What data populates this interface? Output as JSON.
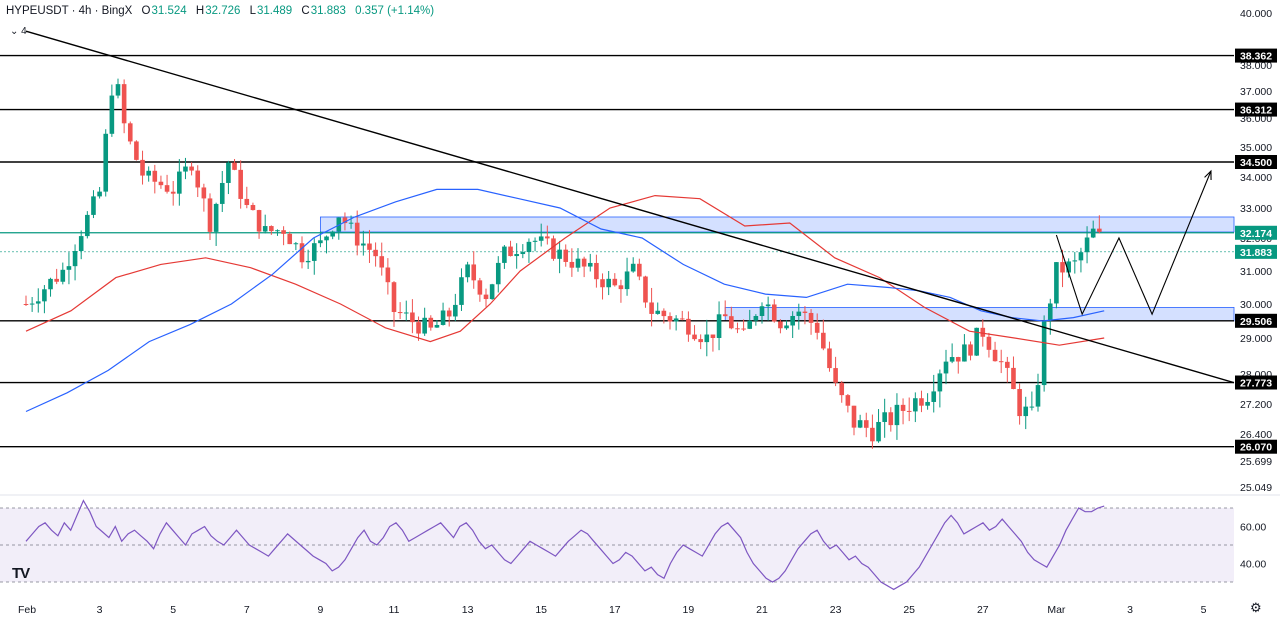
{
  "header": {
    "symbol": "HYPEUSDT · 4h · BingX",
    "open_label": "O",
    "open": "31.524",
    "high_label": "H",
    "high": "32.726",
    "low_label": "L",
    "low": "31.489",
    "close_label": "C",
    "close": "31.883",
    "change": "0.357 (+1.14%)"
  },
  "indicators_collapse": "4",
  "logo": "TV",
  "settings_icon": "gear-icon",
  "colors": {
    "up": "#089981",
    "down": "#ef5350",
    "ma_fast": "#e53935",
    "ma_slow": "#2962ff",
    "rsi": "#7e57c2",
    "level": "#000000",
    "zone": "#2962ff"
  },
  "chart_data": [
    {
      "type": "candlestick",
      "symbol": "HYPEUSDT",
      "interval": "4h",
      "exchange": "BingX",
      "price_axis_ticks": [
        "40.000",
        "38.000",
        "37.000",
        "36.000",
        "35.000",
        "34.000",
        "33.000",
        "32.000",
        "31.000",
        "30.000",
        "29.000",
        "28.000",
        "27.200",
        "26.400",
        "25.699",
        "25.049"
      ],
      "time_axis_ticks": [
        "Feb",
        "3",
        "5",
        "7",
        "9",
        "11",
        "13",
        "15",
        "17",
        "19",
        "21",
        "23",
        "25",
        "27",
        "Mar",
        "3",
        "5"
      ],
      "horizontal_levels": [
        "38.362",
        "36.312",
        "34.500",
        "32.174",
        "29.506",
        "27.773",
        "26.070"
      ],
      "last_price": "31.883",
      "ylim": [
        25.0,
        40.0
      ],
      "zones": [
        {
          "from_date": "Feb 9",
          "to_date": "Mar 5",
          "low": 32.2,
          "high": 32.7
        },
        {
          "from_date": "Feb 20",
          "to_date": "Mar 5",
          "low": 29.5,
          "high": 29.9
        }
      ],
      "trendline": {
        "from": {
          "date": "Feb 1",
          "price": 39.3
        },
        "to": {
          "date": "Mar 5",
          "price": 27.77
        }
      },
      "projection": [
        {
          "date": "Mar 1",
          "price": 32.1
        },
        {
          "date": "Mar 1.7",
          "price": 29.7
        },
        {
          "date": "Mar 2.7",
          "price": 32.0
        },
        {
          "date": "Mar 3.6",
          "price": 29.7
        },
        {
          "date": "Mar 5.2",
          "price": 34.2
        }
      ],
      "candles": [],
      "moving_averages": [
        {
          "color": "#e53935",
          "points": [
            [
              0,
              29.2
            ],
            [
              3,
              29.8
            ],
            [
              6,
              30.8
            ],
            [
              9,
              31.2
            ],
            [
              12,
              31.4
            ],
            [
              15,
              31.1
            ],
            [
              18,
              30.6
            ],
            [
              21,
              30.0
            ],
            [
              24,
              29.3
            ],
            [
              27,
              28.9
            ],
            [
              29,
              29.2
            ],
            [
              31,
              30.0
            ],
            [
              33,
              31.0
            ],
            [
              36,
              32.0
            ],
            [
              39,
              33.0
            ],
            [
              42,
              33.4
            ],
            [
              45,
              33.3
            ],
            [
              48,
              32.4
            ],
            [
              51,
              32.5
            ],
            [
              54,
              31.4
            ],
            [
              57,
              30.8
            ],
            [
              60,
              29.9
            ],
            [
              63,
              29.2
            ],
            [
              66,
              29.0
            ],
            [
              69,
              28.8
            ],
            [
              72,
              29.0
            ]
          ]
        },
        {
          "color": "#2962ff",
          "points": [
            [
              0,
              27.0
            ],
            [
              4,
              27.5
            ],
            [
              8,
              28.1
            ],
            [
              12,
              28.9
            ],
            [
              16,
              29.4
            ],
            [
              20,
              30.0
            ],
            [
              24,
              30.9
            ],
            [
              28,
              32.0
            ],
            [
              32,
              32.7
            ],
            [
              36,
              33.2
            ],
            [
              40,
              33.6
            ],
            [
              44,
              33.6
            ],
            [
              48,
              33.3
            ],
            [
              52,
              33.0
            ],
            [
              56,
              32.3
            ],
            [
              60,
              32.0
            ],
            [
              64,
              31.2
            ],
            [
              68,
              30.6
            ],
            [
              72,
              30.3
            ],
            [
              76,
              30.2
            ],
            [
              80,
              30.6
            ],
            [
              84,
              30.5
            ],
            [
              87,
              30.4
            ],
            [
              90,
              30.2
            ],
            [
              93,
              29.8
            ],
            [
              96,
              29.6
            ],
            [
              99,
              29.5
            ],
            [
              102,
              29.6
            ],
            [
              105,
              29.8
            ]
          ]
        }
      ],
      "rsi": {
        "ticks": [
          "60.00",
          "40.00"
        ],
        "band_upper": 70,
        "band_mid": 50,
        "band_lower": 30,
        "values": [
          52,
          56,
          60,
          62,
          58,
          55,
          62,
          58,
          66,
          74,
          68,
          60,
          57,
          54,
          60,
          52,
          56,
          58,
          55,
          52,
          48,
          56,
          62,
          58,
          54,
          50,
          56,
          58,
          60,
          55,
          52,
          50,
          54,
          58,
          54,
          50,
          48,
          46,
          44,
          48,
          52,
          56,
          53,
          50,
          47,
          44,
          42,
          40,
          36,
          38,
          42,
          48,
          54,
          58,
          52,
          50,
          54,
          60,
          62,
          58,
          52,
          54,
          56,
          58,
          60,
          62,
          58,
          54,
          60,
          62,
          58,
          52,
          48,
          50,
          46,
          42,
          40,
          44,
          48,
          52,
          50,
          48,
          46,
          44,
          48,
          52,
          55,
          58,
          56,
          52,
          48,
          44,
          40,
          42,
          46,
          44,
          40,
          36,
          38,
          34,
          32,
          40,
          46,
          50,
          48,
          46,
          44,
          50,
          56,
          60,
          62,
          58,
          54,
          46,
          40,
          36,
          32,
          30,
          32,
          36,
          42,
          48,
          52,
          56,
          58,
          52,
          48,
          50,
          46,
          42,
          44,
          40,
          38,
          34,
          30,
          28,
          26,
          28,
          30,
          34,
          38,
          44,
          50,
          56,
          62,
          66,
          62,
          56,
          58,
          60,
          62,
          58,
          60,
          64,
          60,
          56,
          52,
          46,
          42,
          40,
          38,
          44,
          50,
          58,
          64,
          70,
          68,
          68,
          70,
          71
        ]
      }
    }
  ]
}
